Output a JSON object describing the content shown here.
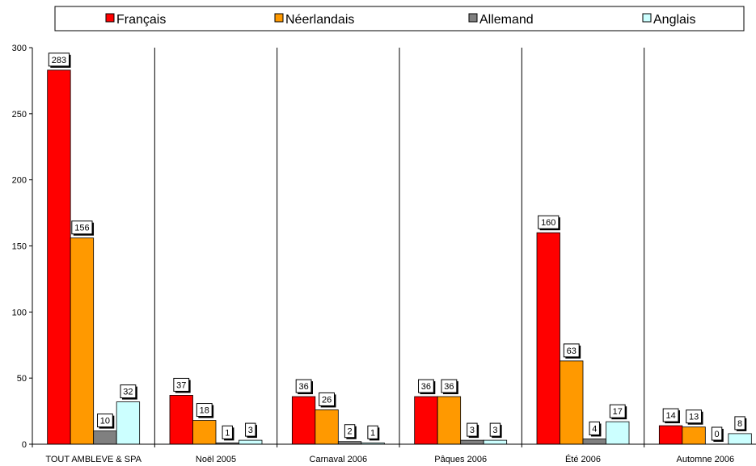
{
  "chart_data": {
    "type": "bar",
    "categories": [
      "TOUT AMBLEVE & SPA",
      "Noël 2005",
      "Carnaval 2006",
      "Pâques 2006",
      "Été 2006",
      "Automne 2006"
    ],
    "series": [
      {
        "name": "Français",
        "color": "#FF0000",
        "values": [
          283,
          37,
          36,
          36,
          160,
          14
        ]
      },
      {
        "name": "Néerlandais",
        "color": "#FF9900",
        "values": [
          156,
          18,
          26,
          36,
          63,
          13
        ]
      },
      {
        "name": "Allemand",
        "color": "#808080",
        "values": [
          10,
          1,
          2,
          3,
          4,
          0
        ]
      },
      {
        "name": "Anglais",
        "color": "#CCFFFF",
        "values": [
          32,
          3,
          1,
          3,
          17,
          8
        ]
      }
    ],
    "ylim": [
      0,
      300
    ],
    "yticks": [
      0,
      50,
      100,
      150,
      200,
      250,
      300
    ],
    "grid": "vertical separators between categories",
    "legend_position": "top",
    "data_labels": true
  }
}
